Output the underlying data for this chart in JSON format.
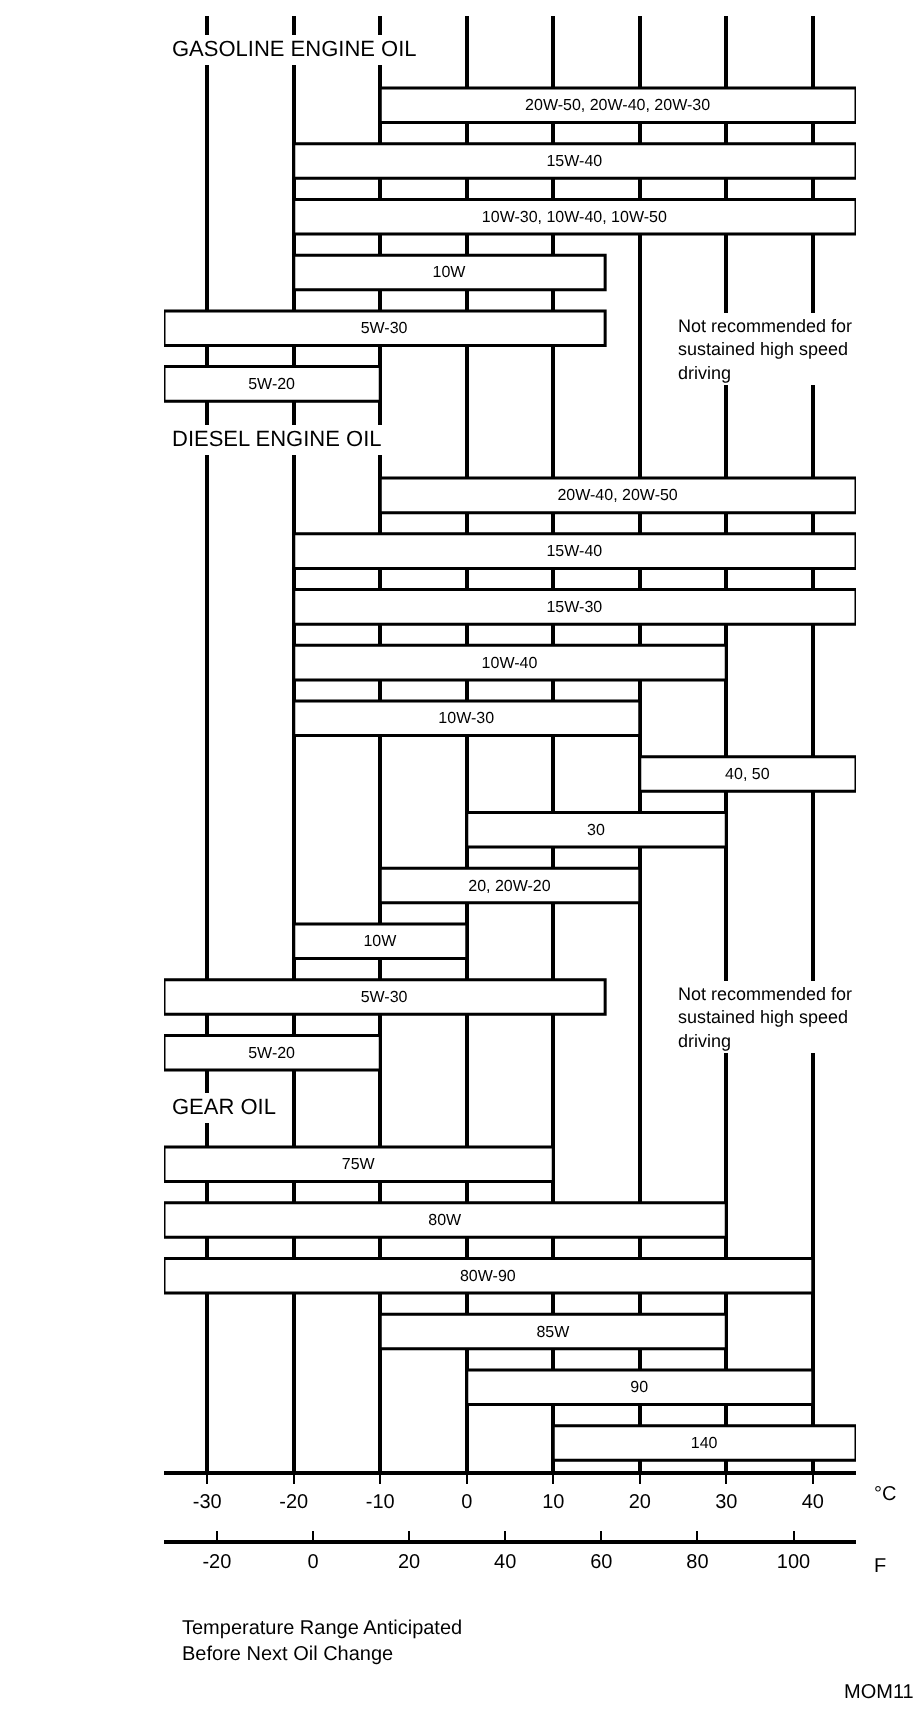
{
  "chart_data": {
    "type": "bar",
    "orientation": "horizontal",
    "categories": [
      null,
      "20W-50, 20W-40, 20W-30",
      "15W-40",
      "10W-30, 10W-40, 10W-50",
      "10W",
      "5W-30",
      "5W-20",
      null,
      "20W-40, 20W-50",
      "15W-40",
      "15W-30",
      "10W-40",
      "10W-30",
      "40, 50",
      "30",
      "20, 20W-20",
      "10W",
      "5W-30",
      "5W-20",
      null,
      "75W",
      "80W",
      "80W-90",
      "85W",
      "90",
      "140"
    ],
    "base": [
      null,
      -10,
      -20,
      -20,
      -20,
      -35,
      -35,
      null,
      -10,
      -20,
      -20,
      -20,
      -20,
      20,
      0,
      -10,
      -20,
      -35,
      -35,
      null,
      -35,
      -35,
      -35,
      -10,
      0,
      10
    ],
    "values": [
      null,
      55,
      65,
      65,
      36,
      51,
      25,
      null,
      55,
      65,
      65,
      50,
      40,
      25,
      30,
      30,
      20,
      51,
      25,
      null,
      45,
      65,
      75,
      40,
      40,
      35
    ],
    "color": "#ffffff",
    "xlim": [
      -35,
      45
    ],
    "xticks": [
      -30,
      -20,
      -10,
      0,
      10,
      20,
      30,
      40
    ],
    "xlabel": "°C",
    "x2lim": [
      -31,
      113
    ],
    "x2ticks": [
      -20,
      0,
      20,
      40,
      60,
      80,
      100
    ],
    "x2label": "F",
    "grid": "x",
    "annotations": [
      "GASOLINE ENGINE OIL",
      "Not recommended for sustained high speed driving",
      "DIESEL ENGINE OIL",
      "Not recommended for sustained high speed driving",
      "GEAR OIL",
      "Temperature Range Anticipated Before Next Oil Change",
      "MOM11"
    ]
  }
}
